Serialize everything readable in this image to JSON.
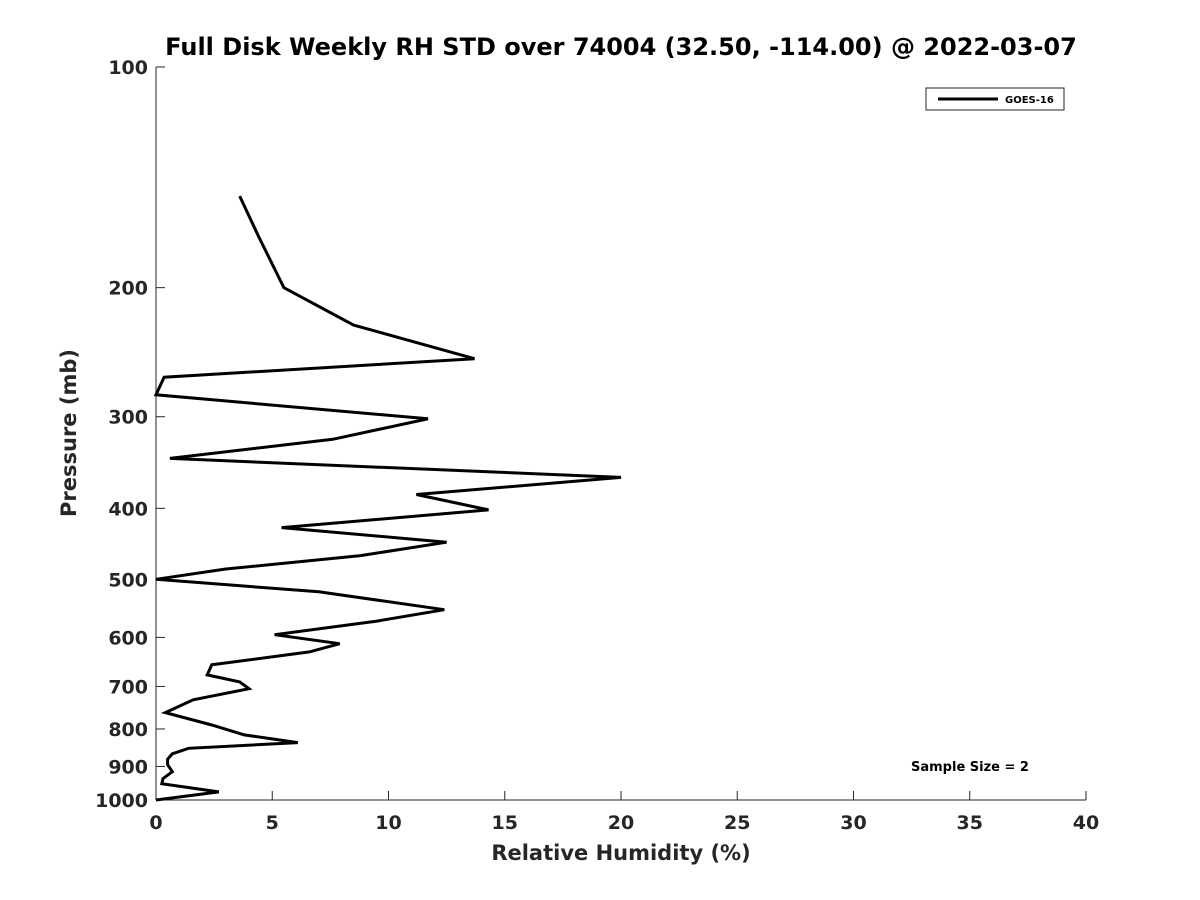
{
  "chart_data": {
    "type": "line",
    "title": "Full Disk Weekly RH STD over 74004 (32.50, -114.00) @ 2022-03-07",
    "xlabel": "Relative Humidity (%)",
    "ylabel": "Pressure (mb)",
    "xlim": [
      0,
      40
    ],
    "ylim": [
      100,
      1000
    ],
    "y_scale": "log",
    "y_reversed": true,
    "x_ticks": [
      0,
      5,
      10,
      15,
      20,
      25,
      30,
      35,
      40
    ],
    "y_ticks": [
      100,
      200,
      300,
      400,
      500,
      600,
      700,
      800,
      900,
      1000
    ],
    "grid": false,
    "legend_position": "top-right",
    "series": [
      {
        "name": "GOES-16",
        "color": "#000000",
        "x": [
          3.6,
          4.4,
          5.5,
          8.5,
          13.7,
          0.35,
          0.0,
          11.7,
          7.6,
          0.6,
          20.0,
          11.2,
          14.3,
          5.4,
          12.5,
          8.8,
          3.0,
          0.0,
          7.0,
          12.4,
          9.5,
          5.1,
          7.9,
          6.6,
          2.4,
          2.2,
          3.6,
          4.0,
          1.6,
          0.4,
          2.4,
          3.8,
          6.1,
          1.4,
          0.7,
          0.5,
          0.5,
          0.7,
          0.3,
          0.25,
          2.7,
          0.0
        ],
        "y": [
          150,
          170,
          200,
          225,
          250,
          265,
          280,
          302,
          322,
          342,
          363,
          383,
          402,
          425,
          445,
          464,
          484,
          500,
          520,
          550,
          570,
          595,
          612,
          628,
          654,
          675,
          690,
          705,
          730,
          760,
          790,
          815,
          835,
          850,
          865,
          880,
          895,
          915,
          935,
          950,
          975,
          1000
        ]
      }
    ],
    "annotations": [
      {
        "text": "Sample Size = 2",
        "x": 35.5,
        "y": 900
      }
    ]
  }
}
